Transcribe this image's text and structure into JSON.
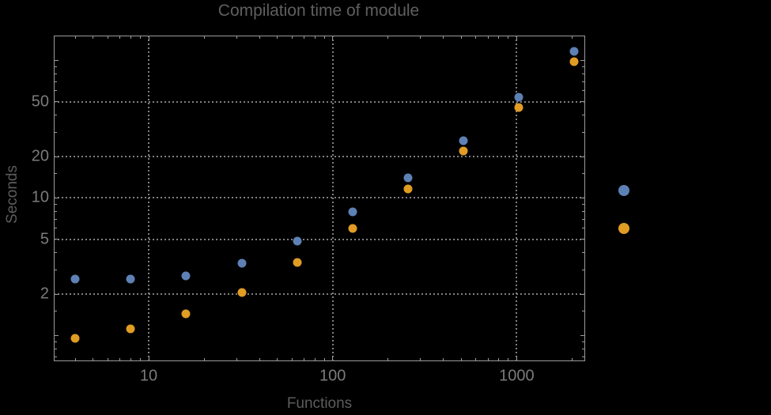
{
  "title": "Compilation time of module",
  "colors": {
    "background": "#000000",
    "frame": "#9b9b9b",
    "grid": "#7f7f7f",
    "title_text": "#5f5f5f",
    "axis_label_text": "#5c5c5c",
    "tick_label_text": "#7b7b7b",
    "series1_blue": "#5e81b5",
    "series2_orange": "#e19c24"
  },
  "chart_data": {
    "type": "scatter",
    "title": "Compilation time of module",
    "xlabel": "Functions",
    "ylabel": "Seconds",
    "x_scale": "log",
    "y_scale": "log",
    "xlim": [
      3,
      2380
    ],
    "ylim": [
      0.63,
      151
    ],
    "grid": {
      "style": "dotted",
      "x_values": [
        10,
        100,
        1000
      ],
      "y_values": [
        2,
        5,
        10,
        20,
        50
      ]
    },
    "x": [
      4,
      8,
      16,
      32,
      64,
      128,
      256,
      512,
      1024,
      2048
    ],
    "series": [
      {
        "name": "series-1-blue",
        "color": "#5e81b5",
        "values": [
          2.57,
          2.57,
          2.71,
          3.36,
          4.85,
          7.95,
          13.9,
          26.2,
          54.0,
          116.0
        ]
      },
      {
        "name": "series-2-orange",
        "color": "#e19c24",
        "values": [
          0.95,
          1.12,
          1.44,
          2.06,
          3.4,
          6.01,
          11.7,
          21.9,
          45.7,
          97.5
        ]
      }
    ],
    "x_ticks": {
      "major_labeled": [
        10,
        100,
        1000
      ],
      "minor": [
        4,
        5,
        6,
        7,
        8,
        9,
        20,
        30,
        40,
        50,
        60,
        70,
        80,
        90,
        200,
        300,
        400,
        500,
        600,
        700,
        800,
        900,
        2000
      ]
    },
    "y_ticks": {
      "major_labeled": [
        2,
        5,
        10,
        20,
        50
      ],
      "major_unlabeled": [
        1,
        100
      ],
      "minor": [
        0.7,
        0.8,
        0.9,
        1.5,
        3,
        4,
        6,
        7,
        8,
        9,
        15,
        30,
        40,
        60,
        70,
        80,
        90
      ]
    },
    "legend": {
      "position": "outside-right",
      "entries": [
        {
          "marker_color": "#5e81b5",
          "label": ""
        },
        {
          "marker_color": "#e19c24",
          "label": ""
        }
      ]
    }
  }
}
